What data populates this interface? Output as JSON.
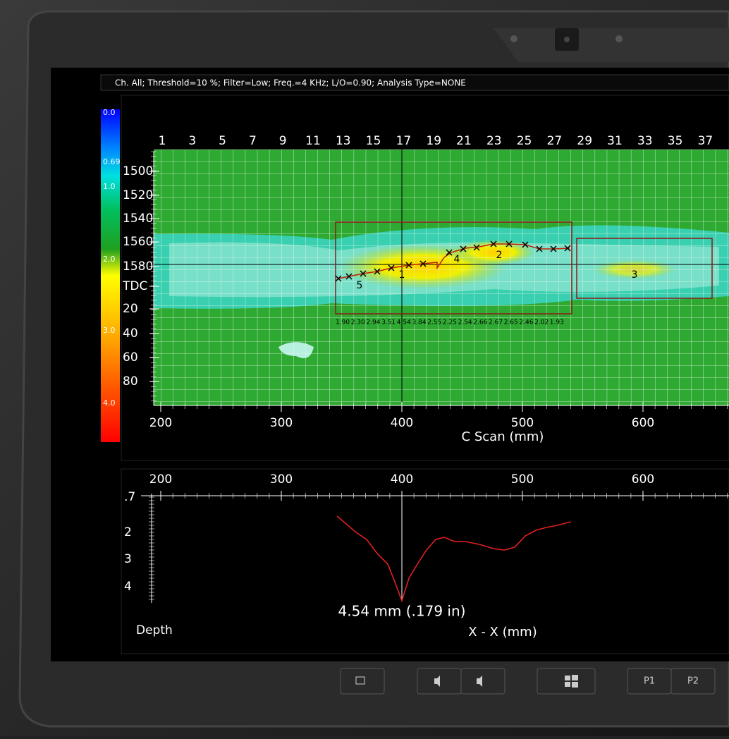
{
  "status_bar": {
    "text": "Ch. All; Threshold=10 %; Filter=Low; Freq.=4 KHz; L/O=0.90; Analysis Type=NONE"
  },
  "color_scale": {
    "labels": [
      "0.0",
      "0.69",
      "1.0",
      "2.0",
      "3.0",
      "4.0"
    ]
  },
  "c_scan": {
    "scan_labels": [
      "1",
      "3",
      "5",
      "7",
      "9",
      "11",
      "13",
      "15",
      "17",
      "19",
      "21",
      "23",
      "25",
      "27",
      "29",
      "31",
      "33",
      "35",
      "37"
    ],
    "y_labels": [
      "1500",
      "1520",
      "1540",
      "1560",
      "1580",
      "TDC",
      "20",
      "40",
      "60",
      "80"
    ],
    "x_labels": [
      "200",
      "300",
      "400",
      "500",
      "600"
    ],
    "x_title": "C Scan (mm)",
    "markers": [
      "1",
      "2",
      "3",
      "4",
      "5"
    ],
    "depth_labels": [
      "1.90",
      "2.30",
      "2.94",
      "3.51",
      "4.54",
      "3.84",
      "2.55",
      "2.25",
      "2.54",
      "2.66",
      "2.67",
      "2.65",
      "2.46",
      "2.02",
      "1.93"
    ]
  },
  "profile": {
    "x_labels": [
      "200",
      "300",
      "400",
      "500",
      "600"
    ],
    "y_labels": [
      ".7",
      "2",
      "3",
      "4"
    ],
    "annotation": "4.54 mm (.179 in)",
    "x_title": "X - X (mm)",
    "y_title": "Depth"
  },
  "buttons": {
    "p1": "P1",
    "p2": "P2"
  }
}
